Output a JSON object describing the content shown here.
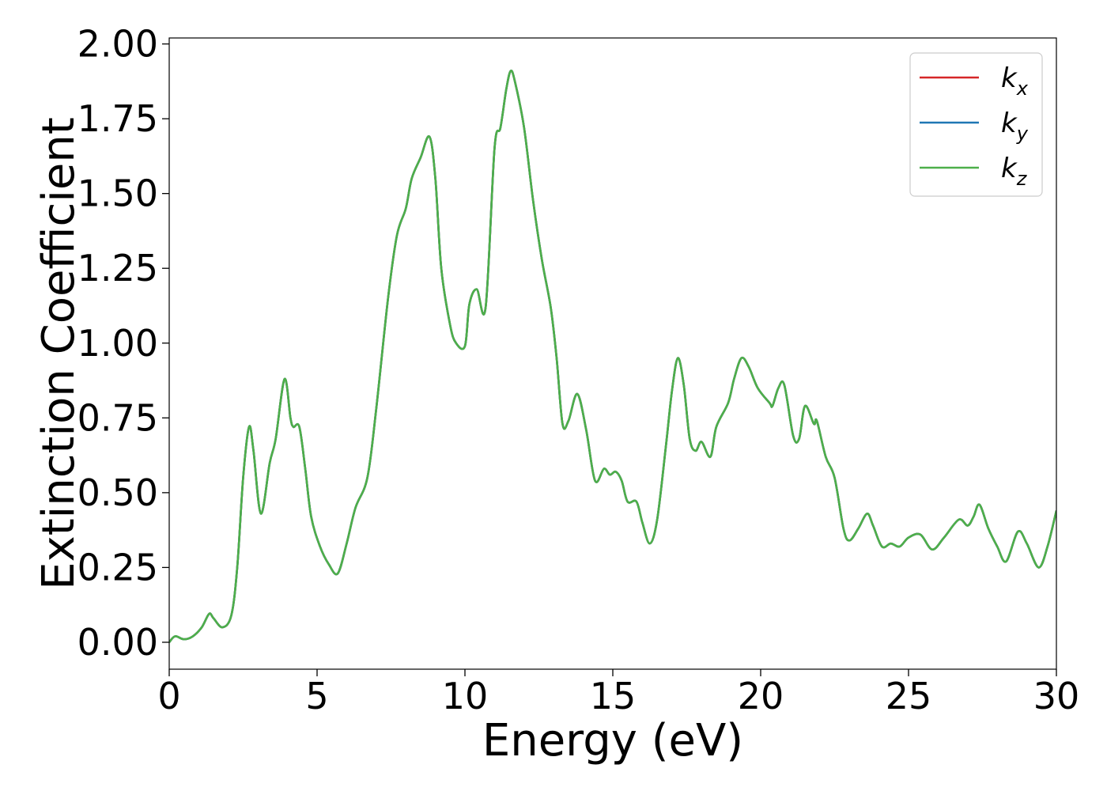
{
  "chart_data": {
    "type": "line",
    "xlabel": "Energy (eV)",
    "ylabel": "Extinction Coefficient",
    "xlim": [
      0,
      30
    ],
    "ylim": [
      -0.09,
      2.02
    ],
    "xticks": [
      0,
      5,
      10,
      15,
      20,
      25,
      30
    ],
    "xtick_labels": [
      "0",
      "5",
      "10",
      "15",
      "20",
      "25",
      "30"
    ],
    "yticks": [
      0.0,
      0.25,
      0.5,
      0.75,
      1.0,
      1.25,
      1.5,
      1.75,
      2.0
    ],
    "ytick_labels": [
      "0.00",
      "0.25",
      "0.50",
      "0.75",
      "1.00",
      "1.25",
      "1.50",
      "1.75",
      "2.00"
    ],
    "grid": false,
    "legend_position": "top-right",
    "x": [
      0.0,
      0.2,
      0.5,
      0.8,
      1.1,
      1.35,
      1.5,
      1.8,
      2.1,
      2.3,
      2.5,
      2.7,
      2.85,
      3.1,
      3.4,
      3.6,
      3.9,
      4.1,
      4.2,
      4.4,
      4.6,
      4.8,
      5.1,
      5.4,
      5.7,
      6.0,
      6.3,
      6.7,
      7.0,
      7.4,
      7.7,
      8.0,
      8.2,
      8.5,
      8.8,
      9.0,
      9.2,
      9.5,
      9.7,
      10.0,
      10.15,
      10.4,
      10.7,
      11.0,
      11.2,
      11.4,
      11.55,
      11.7,
      12.0,
      12.3,
      12.6,
      12.9,
      13.1,
      13.3,
      13.5,
      13.8,
      14.1,
      14.4,
      14.7,
      14.9,
      15.1,
      15.3,
      15.5,
      15.8,
      16.0,
      16.25,
      16.5,
      16.8,
      17.0,
      17.2,
      17.4,
      17.6,
      17.8,
      18.0,
      18.3,
      18.5,
      18.9,
      19.1,
      19.35,
      19.6,
      19.9,
      20.3,
      20.4,
      20.6,
      20.8,
      21.1,
      21.3,
      21.5,
      21.8,
      21.9,
      22.2,
      22.5,
      22.8,
      23.0,
      23.3,
      23.6,
      23.8,
      24.1,
      24.4,
      24.7,
      25.0,
      25.4,
      25.8,
      26.2,
      26.7,
      27.0,
      27.2,
      27.4,
      27.7,
      28.0,
      28.3,
      28.7,
      29.0,
      29.4,
      29.7,
      30.0
    ],
    "series": [
      {
        "name": "k_x",
        "symbol": "k",
        "subscript": "x",
        "color": "#d62728",
        "values": [
          0.0,
          0.02,
          0.01,
          0.02,
          0.05,
          0.095,
          0.08,
          0.05,
          0.09,
          0.25,
          0.55,
          0.72,
          0.64,
          0.43,
          0.6,
          0.68,
          0.88,
          0.75,
          0.72,
          0.72,
          0.58,
          0.42,
          0.32,
          0.26,
          0.23,
          0.33,
          0.45,
          0.55,
          0.78,
          1.15,
          1.36,
          1.45,
          1.55,
          1.62,
          1.69,
          1.55,
          1.25,
          1.06,
          1.0,
          0.99,
          1.13,
          1.18,
          1.12,
          1.65,
          1.72,
          1.85,
          1.91,
          1.87,
          1.72,
          1.48,
          1.28,
          1.12,
          0.95,
          0.73,
          0.74,
          0.83,
          0.71,
          0.54,
          0.58,
          0.56,
          0.57,
          0.54,
          0.47,
          0.47,
          0.4,
          0.33,
          0.41,
          0.66,
          0.84,
          0.95,
          0.86,
          0.68,
          0.64,
          0.67,
          0.62,
          0.72,
          0.8,
          0.88,
          0.95,
          0.92,
          0.85,
          0.8,
          0.79,
          0.85,
          0.86,
          0.69,
          0.68,
          0.79,
          0.73,
          0.74,
          0.62,
          0.55,
          0.38,
          0.34,
          0.38,
          0.43,
          0.39,
          0.32,
          0.33,
          0.32,
          0.35,
          0.36,
          0.31,
          0.35,
          0.41,
          0.39,
          0.42,
          0.46,
          0.38,
          0.32,
          0.27,
          0.37,
          0.33,
          0.25,
          0.32,
          0.44
        ]
      },
      {
        "name": "k_y",
        "symbol": "k",
        "subscript": "y",
        "color": "#1f77b4",
        "values": [
          0.0,
          0.02,
          0.01,
          0.02,
          0.05,
          0.095,
          0.08,
          0.05,
          0.09,
          0.25,
          0.55,
          0.72,
          0.64,
          0.43,
          0.6,
          0.68,
          0.88,
          0.75,
          0.72,
          0.72,
          0.58,
          0.42,
          0.32,
          0.26,
          0.23,
          0.33,
          0.45,
          0.55,
          0.78,
          1.15,
          1.36,
          1.45,
          1.55,
          1.62,
          1.69,
          1.55,
          1.25,
          1.06,
          1.0,
          0.99,
          1.13,
          1.18,
          1.12,
          1.65,
          1.72,
          1.85,
          1.91,
          1.87,
          1.72,
          1.48,
          1.28,
          1.12,
          0.95,
          0.73,
          0.74,
          0.83,
          0.71,
          0.54,
          0.58,
          0.56,
          0.57,
          0.54,
          0.47,
          0.47,
          0.4,
          0.33,
          0.41,
          0.66,
          0.84,
          0.95,
          0.86,
          0.68,
          0.64,
          0.67,
          0.62,
          0.72,
          0.8,
          0.88,
          0.95,
          0.92,
          0.85,
          0.8,
          0.79,
          0.85,
          0.86,
          0.69,
          0.68,
          0.79,
          0.73,
          0.74,
          0.62,
          0.55,
          0.38,
          0.34,
          0.38,
          0.43,
          0.39,
          0.32,
          0.33,
          0.32,
          0.35,
          0.36,
          0.31,
          0.35,
          0.41,
          0.39,
          0.42,
          0.46,
          0.38,
          0.32,
          0.27,
          0.37,
          0.33,
          0.25,
          0.32,
          0.44
        ]
      },
      {
        "name": "k_z",
        "symbol": "k",
        "subscript": "z",
        "color": "#4daf4a",
        "values": [
          0.0,
          0.02,
          0.01,
          0.02,
          0.05,
          0.095,
          0.08,
          0.05,
          0.09,
          0.25,
          0.55,
          0.72,
          0.64,
          0.43,
          0.6,
          0.68,
          0.88,
          0.75,
          0.72,
          0.72,
          0.58,
          0.42,
          0.32,
          0.26,
          0.23,
          0.33,
          0.45,
          0.55,
          0.78,
          1.15,
          1.36,
          1.45,
          1.55,
          1.62,
          1.69,
          1.55,
          1.25,
          1.06,
          1.0,
          0.99,
          1.13,
          1.18,
          1.12,
          1.65,
          1.72,
          1.85,
          1.91,
          1.87,
          1.72,
          1.48,
          1.28,
          1.12,
          0.95,
          0.73,
          0.74,
          0.83,
          0.71,
          0.54,
          0.58,
          0.56,
          0.57,
          0.54,
          0.47,
          0.47,
          0.4,
          0.33,
          0.41,
          0.66,
          0.84,
          0.95,
          0.86,
          0.68,
          0.64,
          0.67,
          0.62,
          0.72,
          0.8,
          0.88,
          0.95,
          0.92,
          0.85,
          0.8,
          0.79,
          0.85,
          0.86,
          0.69,
          0.68,
          0.79,
          0.73,
          0.74,
          0.62,
          0.55,
          0.38,
          0.34,
          0.38,
          0.43,
          0.39,
          0.32,
          0.33,
          0.32,
          0.35,
          0.36,
          0.31,
          0.35,
          0.41,
          0.39,
          0.42,
          0.46,
          0.38,
          0.32,
          0.27,
          0.37,
          0.33,
          0.25,
          0.32,
          0.44
        ]
      }
    ]
  }
}
